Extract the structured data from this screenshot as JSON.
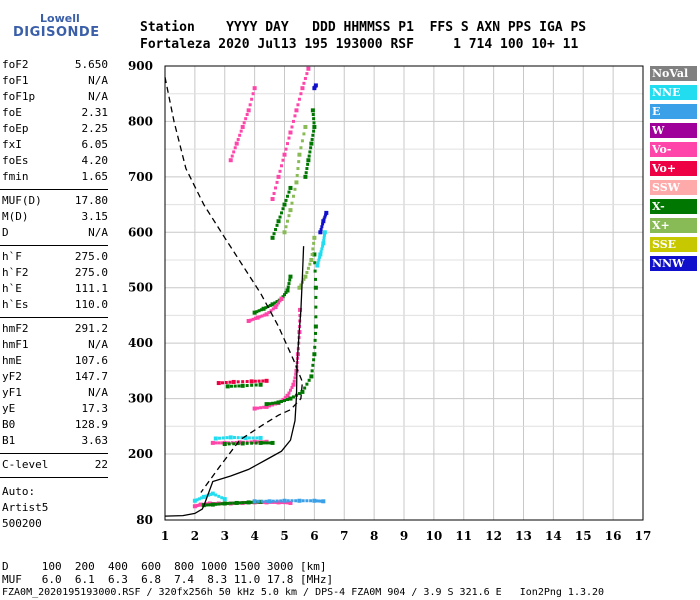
{
  "logo": {
    "top": "Lowell",
    "main": "DIGISONDE"
  },
  "header": {
    "row1": "Station    YYYY DAY   DDD HHMMSS P1  FFS S AXN PPS IGA PS",
    "row2": "Fortaleza 2020 Jul13 195 193000 RSF     1 714 100 10+ 11"
  },
  "params": [
    {
      "group": [
        {
          "name": "foF2",
          "value": "5.650"
        },
        {
          "name": "foF1",
          "value": "N/A"
        },
        {
          "name": "foF1p",
          "value": "N/A"
        },
        {
          "name": "foE",
          "value": "2.31"
        },
        {
          "name": "foEp",
          "value": "2.25"
        },
        {
          "name": "fxI",
          "value": "6.05"
        },
        {
          "name": "foEs",
          "value": "4.20"
        },
        {
          "name": "fmin",
          "value": "1.65"
        }
      ]
    },
    {
      "group": [
        {
          "name": "MUF(D)",
          "value": "17.80"
        },
        {
          "name": "M(D)",
          "value": "3.15"
        },
        {
          "name": "D",
          "value": "N/A"
        }
      ]
    },
    {
      "group": [
        {
          "name": "h`F",
          "value": "275.0"
        },
        {
          "name": "h`F2",
          "value": "275.0"
        },
        {
          "name": "h`E",
          "value": "111.1"
        },
        {
          "name": "h`Es",
          "value": "110.0"
        }
      ]
    },
    {
      "group": [
        {
          "name": "hmF2",
          "value": "291.2"
        },
        {
          "name": "hmF1",
          "value": "N/A"
        },
        {
          "name": "hmE",
          "value": "107.6"
        },
        {
          "name": "yF2",
          "value": "147.7"
        },
        {
          "name": "yF1",
          "value": "N/A"
        },
        {
          "name": "yE",
          "value": "17.3"
        },
        {
          "name": "B0",
          "value": "128.9"
        },
        {
          "name": "B1",
          "value": "3.63"
        }
      ]
    },
    {
      "group": [
        {
          "name": "C-level",
          "value": "22"
        }
      ]
    }
  ],
  "auto": {
    "line1": "Auto:",
    "line2": "Artist5",
    "line3": "500200"
  },
  "legend": [
    {
      "label": "NoVal",
      "color": "#808080"
    },
    {
      "label": "NNE",
      "color": "#22ddf0"
    },
    {
      "label": "E",
      "color": "#3aa0e8"
    },
    {
      "label": "W",
      "color": "#a0009a"
    },
    {
      "label": "Vo-",
      "color": "#ff44aa"
    },
    {
      "label": "Vo+",
      "color": "#ee0044"
    },
    {
      "label": "SSW",
      "color": "#ffaaaa"
    },
    {
      "label": "X-",
      "color": "#007700"
    },
    {
      "label": "X+",
      "color": "#88bb55"
    },
    {
      "label": "SSE",
      "color": "#c8c800"
    },
    {
      "label": "NNW",
      "color": "#1010cc"
    }
  ],
  "footer": {
    "d_row": "D     100  200  400  600  800 1000 1500 3000 [km]",
    "muf_row": "MUF   6.0  6.1  6.3  6.8  7.4  8.3 11.0 17.8 [MHz]",
    "file_row": "FZA0M_2020195193000.RSF / 320fx256h 50 kHz 5.0 km / DPS-4 FZA0M 904 / 3.9 S 321.6 E   Ion2Png 1.3.20"
  },
  "chart_data": {
    "type": "scatter",
    "title": "",
    "xlabel": "",
    "ylabel": "",
    "xlim": [
      1,
      17
    ],
    "ylim": [
      80,
      900
    ],
    "xticks": [
      1,
      2,
      3,
      4,
      5,
      6,
      7,
      8,
      9,
      10,
      11,
      12,
      13,
      14,
      15,
      16,
      17
    ],
    "yticks": [
      80,
      200,
      300,
      400,
      500,
      600,
      700,
      800,
      900
    ],
    "grid": true,
    "legend_position": "right",
    "profile_solid": [
      {
        "x": 1.0,
        "y": 87
      },
      {
        "x": 1.6,
        "y": 88
      },
      {
        "x": 2.0,
        "y": 92
      },
      {
        "x": 2.25,
        "y": 100
      },
      {
        "x": 2.31,
        "y": 107
      },
      {
        "x": 2.6,
        "y": 150
      },
      {
        "x": 3.2,
        "y": 160
      },
      {
        "x": 3.8,
        "y": 172
      },
      {
        "x": 4.4,
        "y": 190
      },
      {
        "x": 4.9,
        "y": 205
      },
      {
        "x": 5.2,
        "y": 225
      },
      {
        "x": 5.35,
        "y": 260
      },
      {
        "x": 5.4,
        "y": 305
      },
      {
        "x": 5.42,
        "y": 360
      },
      {
        "x": 5.48,
        "y": 410
      },
      {
        "x": 5.55,
        "y": 460
      },
      {
        "x": 5.6,
        "y": 520
      },
      {
        "x": 5.64,
        "y": 575
      }
    ],
    "profile_dashed": [
      {
        "x": 1.0,
        "y": 880
      },
      {
        "x": 1.3,
        "y": 800
      },
      {
        "x": 1.7,
        "y": 715
      },
      {
        "x": 2.3,
        "y": 650
      },
      {
        "x": 3.0,
        "y": 590
      },
      {
        "x": 3.6,
        "y": 540
      },
      {
        "x": 4.2,
        "y": 490
      },
      {
        "x": 4.8,
        "y": 430
      },
      {
        "x": 5.3,
        "y": 370
      },
      {
        "x": 5.6,
        "y": 330
      },
      {
        "x": 5.55,
        "y": 300
      },
      {
        "x": 5.2,
        "y": 280
      },
      {
        "x": 4.8,
        "y": 270
      },
      {
        "x": 4.2,
        "y": 250
      },
      {
        "x": 3.5,
        "y": 225
      },
      {
        "x": 2.8,
        "y": 175
      },
      {
        "x": 2.2,
        "y": 130
      }
    ],
    "traces": [
      {
        "series": "Vo-",
        "points": [
          [
            2.0,
            105
          ],
          [
            2.2,
            108
          ],
          [
            2.5,
            110
          ],
          [
            2.8,
            110
          ],
          [
            3.2,
            110
          ],
          [
            3.6,
            111
          ],
          [
            4.0,
            112
          ],
          [
            4.4,
            112
          ],
          [
            4.8,
            112
          ],
          [
            5.2,
            111
          ]
        ]
      },
      {
        "series": "X-",
        "points": [
          [
            2.3,
            107
          ],
          [
            2.6,
            108
          ],
          [
            3.0,
            110
          ],
          [
            3.4,
            111
          ],
          [
            3.8,
            112
          ],
          [
            4.2,
            113
          ]
        ]
      },
      {
        "series": "E",
        "points": [
          [
            4.0,
            114
          ],
          [
            4.5,
            114
          ],
          [
            5.0,
            115
          ],
          [
            5.5,
            115
          ],
          [
            6.0,
            115
          ],
          [
            6.3,
            114
          ]
        ]
      },
      {
        "series": "NNE",
        "points": [
          [
            2.0,
            115
          ],
          [
            2.3,
            122
          ],
          [
            2.6,
            128
          ],
          [
            3.0,
            118
          ]
        ]
      },
      {
        "series": "Vo-",
        "points": [
          [
            2.6,
            220
          ],
          [
            3.0,
            220
          ],
          [
            3.5,
            221
          ],
          [
            4.0,
            222
          ],
          [
            4.4,
            222
          ]
        ]
      },
      {
        "series": "NNE",
        "points": [
          [
            2.7,
            228
          ],
          [
            3.2,
            230
          ],
          [
            3.7,
            229
          ],
          [
            4.2,
            229
          ]
        ]
      },
      {
        "series": "X-",
        "points": [
          [
            3.0,
            218
          ],
          [
            3.6,
            219
          ],
          [
            4.2,
            220
          ],
          [
            4.6,
            220
          ]
        ]
      },
      {
        "series": "Vo+",
        "points": [
          [
            2.8,
            328
          ],
          [
            3.3,
            330
          ],
          [
            3.9,
            331
          ],
          [
            4.4,
            332
          ]
        ]
      },
      {
        "series": "X-",
        "points": [
          [
            3.1,
            322
          ],
          [
            3.6,
            323
          ],
          [
            4.2,
            325
          ]
        ]
      },
      {
        "series": "Vo-",
        "points": [
          [
            4.0,
            282
          ],
          [
            4.4,
            285
          ],
          [
            4.8,
            292
          ],
          [
            5.1,
            305
          ],
          [
            5.3,
            325
          ],
          [
            5.4,
            350
          ],
          [
            5.45,
            380
          ],
          [
            5.5,
            420
          ],
          [
            5.52,
            460
          ]
        ]
      },
      {
        "series": "X-",
        "points": [
          [
            4.4,
            290
          ],
          [
            4.8,
            293
          ],
          [
            5.2,
            300
          ],
          [
            5.6,
            312
          ],
          [
            5.9,
            340
          ],
          [
            6.0,
            380
          ],
          [
            6.05,
            430
          ],
          [
            6.05,
            500
          ],
          [
            6.0,
            560
          ]
        ]
      },
      {
        "series": "X-",
        "points": [
          [
            4.0,
            455
          ],
          [
            4.3,
            462
          ],
          [
            4.6,
            470
          ],
          [
            4.9,
            480
          ],
          [
            5.1,
            495
          ],
          [
            5.2,
            520
          ]
        ]
      },
      {
        "series": "Vo-",
        "points": [
          [
            3.8,
            440
          ],
          [
            4.1,
            446
          ],
          [
            4.4,
            452
          ],
          [
            4.7,
            465
          ],
          [
            4.9,
            480
          ]
        ]
      },
      {
        "series": "X+",
        "points": [
          [
            5.5,
            500
          ],
          [
            5.7,
            520
          ],
          [
            5.9,
            550
          ],
          [
            6.0,
            590
          ]
        ]
      },
      {
        "series": "NNE",
        "points": [
          [
            6.1,
            540
          ],
          [
            6.2,
            560
          ],
          [
            6.3,
            580
          ],
          [
            6.35,
            600
          ]
        ]
      },
      {
        "series": "NNW",
        "points": [
          [
            6.2,
            600
          ],
          [
            6.3,
            620
          ],
          [
            6.4,
            635
          ]
        ]
      },
      {
        "series": "X-",
        "points": [
          [
            5.7,
            700
          ],
          [
            5.8,
            730
          ],
          [
            5.9,
            760
          ],
          [
            6.0,
            790
          ],
          [
            5.95,
            820
          ]
        ]
      },
      {
        "series": "Vo-",
        "points": [
          [
            4.6,
            660
          ],
          [
            4.8,
            700
          ],
          [
            5.0,
            740
          ],
          [
            5.2,
            780
          ],
          [
            5.4,
            820
          ],
          [
            5.6,
            860
          ],
          [
            5.8,
            895
          ]
        ]
      },
      {
        "series": "X+",
        "points": [
          [
            5.0,
            600
          ],
          [
            5.2,
            640
          ],
          [
            5.4,
            690
          ],
          [
            5.5,
            740
          ],
          [
            5.7,
            790
          ]
        ]
      },
      {
        "series": "Vo-",
        "points": [
          [
            3.2,
            730
          ],
          [
            3.4,
            760
          ],
          [
            3.6,
            790
          ],
          [
            3.8,
            820
          ],
          [
            4.0,
            860
          ]
        ]
      },
      {
        "series": "X-",
        "points": [
          [
            4.6,
            590
          ],
          [
            4.8,
            620
          ],
          [
            5.0,
            650
          ],
          [
            5.2,
            680
          ]
        ]
      },
      {
        "series": "NNW",
        "points": [
          [
            6.0,
            860
          ],
          [
            6.05,
            865
          ]
        ]
      }
    ]
  }
}
